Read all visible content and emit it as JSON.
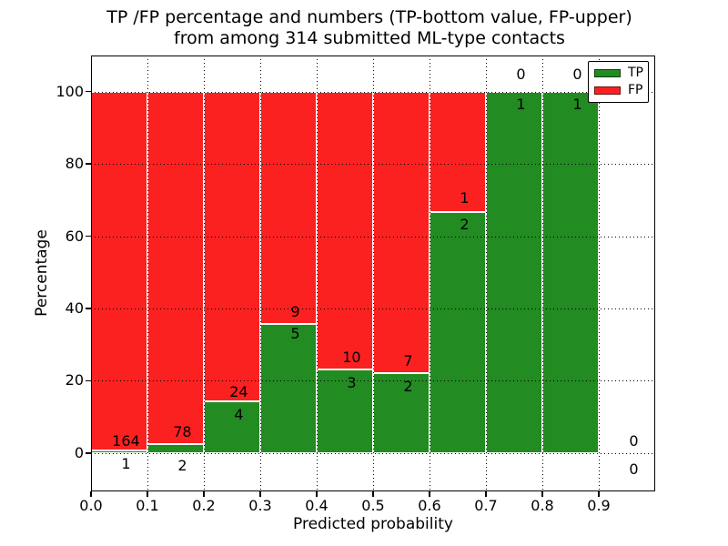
{
  "title": {
    "line1": "TP /FP percentage and numbers (TP-bottom value, FP-upper)",
    "line2": "from among 314 submitted ML-type contacts"
  },
  "chart_data": {
    "type": "bar",
    "subtype": "stacked-percentage",
    "title": "TP /FP percentage and numbers (TP-bottom value, FP-upper) from among 314 submitted ML-type contacts",
    "xlabel": "Predicted probability",
    "ylabel": "Percentage",
    "total_contacts": 314,
    "x_ticks": [
      "0.0",
      "0.1",
      "0.2",
      "0.3",
      "0.4",
      "0.5",
      "0.6",
      "0.7",
      "0.8",
      "0.9"
    ],
    "y_ticks": [
      0,
      20,
      40,
      60,
      80,
      100
    ],
    "xlim": [
      0.0,
      1.0
    ],
    "ylim": [
      -10.6,
      110
    ],
    "grid": "dotted",
    "legend": {
      "position": "upper-right",
      "entries": [
        {
          "label": "TP",
          "color": "#228b22"
        },
        {
          "label": "FP",
          "color": "#fb2121"
        }
      ]
    },
    "bins": [
      {
        "x_start": 0.0,
        "x_end": 0.1,
        "tp": 1,
        "fp": 164,
        "tp_pct": 0.61,
        "fp_label_y": 3.4,
        "tp_label_y": -2.8
      },
      {
        "x_start": 0.1,
        "x_end": 0.2,
        "tp": 2,
        "fp": 78,
        "tp_pct": 2.5,
        "fp_label_y": 6.0,
        "tp_label_y": -3.3
      },
      {
        "x_start": 0.2,
        "x_end": 0.3,
        "tp": 4,
        "fp": 24,
        "tp_pct": 14.29,
        "fp_label_y": 17.0,
        "tp_label_y": 10.8
      },
      {
        "x_start": 0.3,
        "x_end": 0.4,
        "tp": 5,
        "fp": 9,
        "tp_pct": 35.71,
        "fp_label_y": 39.0,
        "tp_label_y": 33.2
      },
      {
        "x_start": 0.4,
        "x_end": 0.5,
        "tp": 3,
        "fp": 10,
        "tp_pct": 23.08,
        "fp_label_y": 26.6,
        "tp_label_y": 19.4
      },
      {
        "x_start": 0.5,
        "x_end": 0.6,
        "tp": 2,
        "fp": 7,
        "tp_pct": 22.22,
        "fp_label_y": 25.6,
        "tp_label_y": 18.5
      },
      {
        "x_start": 0.6,
        "x_end": 0.7,
        "tp": 2,
        "fp": 1,
        "tp_pct": 66.67,
        "fp_label_y": 70.5,
        "tp_label_y": 63.2
      },
      {
        "x_start": 0.7,
        "x_end": 0.8,
        "tp": 1,
        "fp": 0,
        "tp_pct": 100,
        "fp_label_y": 104.8,
        "tp_label_y": 96.5
      },
      {
        "x_start": 0.8,
        "x_end": 0.9,
        "tp": 1,
        "fp": 0,
        "tp_pct": 100,
        "fp_label_y": 104.8,
        "tp_label_y": 96.5
      },
      {
        "x_start": 0.9,
        "x_end": 1.0,
        "tp": 0,
        "fp": 0,
        "tp_pct": null,
        "fp_label_y": 3.4,
        "tp_label_y": -4.4
      }
    ],
    "colors": {
      "tp": "#228b22",
      "fp": "#fb2121",
      "bar_edge": "#ffffff",
      "grid": "#000000",
      "frame": "#000000",
      "background": "#ffffff",
      "text": "#000000"
    }
  }
}
